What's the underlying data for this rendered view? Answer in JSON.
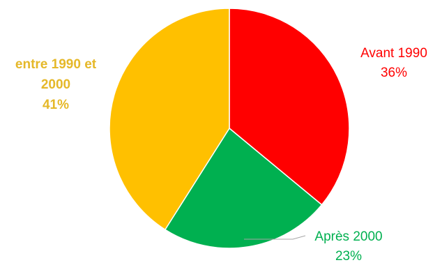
{
  "chart_data": {
    "type": "pie",
    "start_angle_deg": 0,
    "direction": "clockwise",
    "slices": [
      {
        "category": "Avant 1990",
        "value": 36,
        "value_label": "36%",
        "color": "#FF0000"
      },
      {
        "category": "Après 2000",
        "value": 23,
        "value_label": "23%",
        "color": "#00B050"
      },
      {
        "category": "entre 1990 et 2000",
        "category_lines": [
          "entre 1990 et",
          "2000"
        ],
        "value": 41,
        "value_label": "41%",
        "color": "#FFC000",
        "label_color": "#E5B829"
      }
    ],
    "legend": "none",
    "data_labels": "outside, category name and percentage"
  }
}
